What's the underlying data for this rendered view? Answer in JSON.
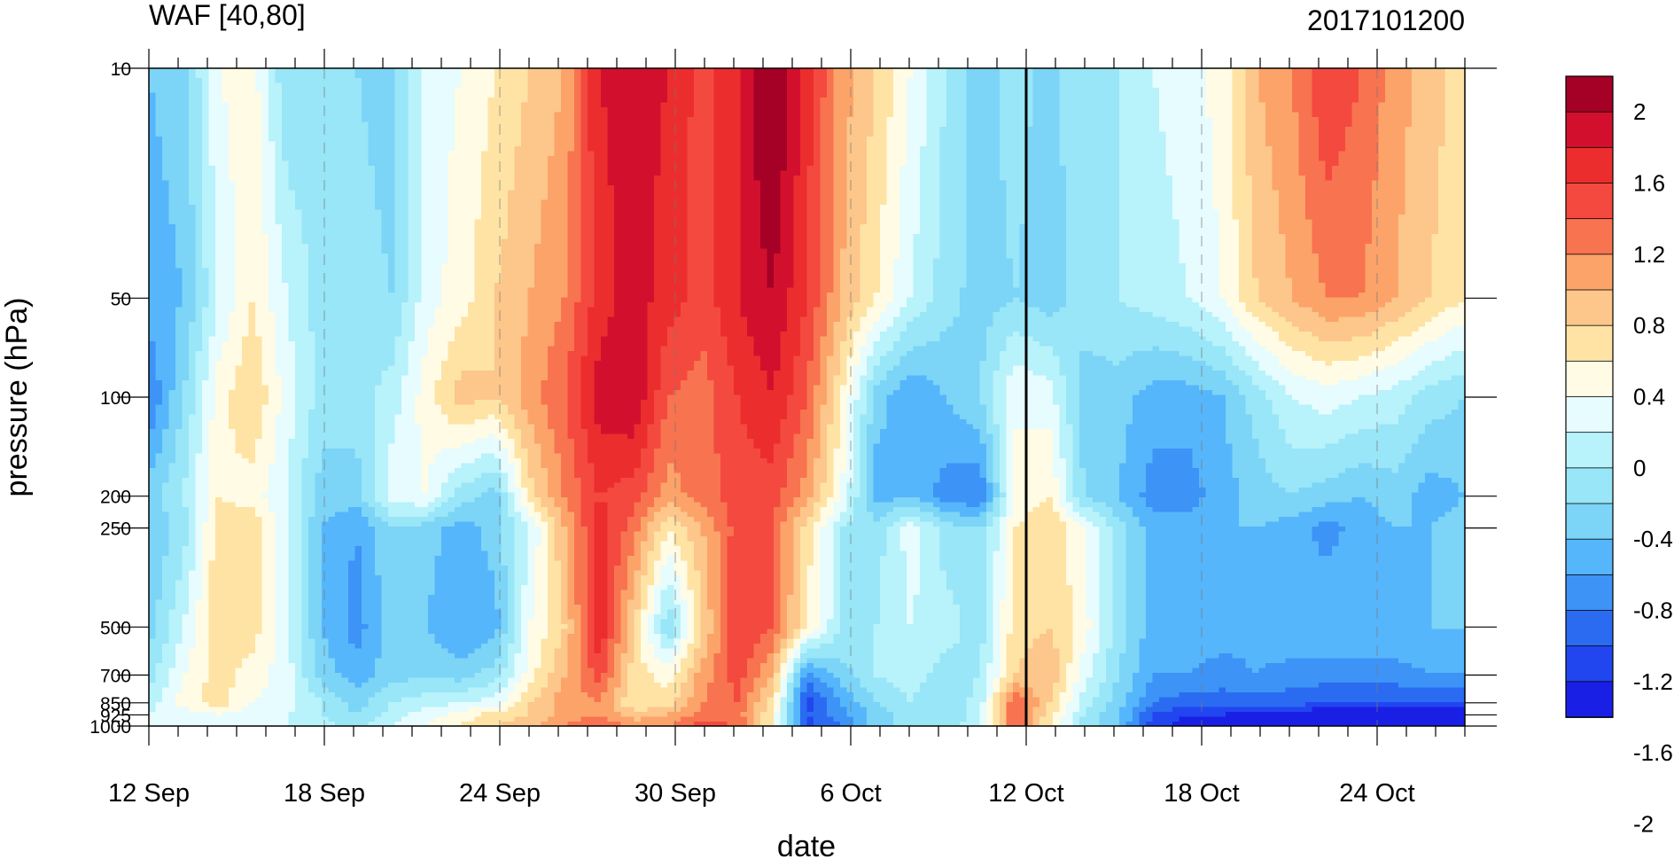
{
  "chart_data": {
    "type": "heatmap",
    "title": "WAF [40,80]",
    "subtitle": "2017101200",
    "xlabel": "date",
    "ylabel": "pressure (hPa)",
    "x_ticks": [
      "12 Sep",
      "18 Sep",
      "24 Sep",
      "30 Sep",
      "6 Oct",
      "12 Oct",
      "18 Oct",
      "24 Oct"
    ],
    "y_ticks": [
      "10",
      "50",
      "100",
      "200",
      "250",
      "500",
      "700",
      "850",
      "925",
      "1000"
    ],
    "y_tick_values": [
      10,
      50,
      100,
      200,
      250,
      500,
      700,
      850,
      925,
      1000
    ],
    "y_scale": "log",
    "y_reversed": true,
    "colorbar": {
      "labels": [
        "2",
        "1.6",
        "1.2",
        "0.8",
        "0.4",
        "0",
        "-0.4",
        "-0.8",
        "-1.2",
        "-1.6",
        "-2"
      ],
      "colors": [
        "#a50026",
        "#d2102e",
        "#ec2d2d",
        "#f4493f",
        "#f8734f",
        "#fca36a",
        "#fdc68a",
        "#fee3a5",
        "#fffbe4",
        "#e6fcff",
        "#b8f2fb",
        "#98e6f7",
        "#7cd4f7",
        "#56b6fb",
        "#3d93f6",
        "#2b6bf2",
        "#2146f0",
        "#1a1fe6"
      ],
      "position": "right"
    },
    "grid_x": [
      "18 Sep",
      "24 Sep",
      "30 Sep",
      "6 Oct",
      "18 Oct",
      "24 Oct"
    ],
    "marker_line": "12 Oct",
    "values": [
      [
        -0.6,
        -0.5,
        0.2,
        0.3,
        -0.4,
        -0.3,
        -0.4,
        -0.5,
        0.1,
        0.2,
        0.4,
        0.6,
        0.8,
        1.6,
        1.7,
        1.6,
        1.3,
        1.6,
        2.1,
        1.5,
        0.9,
        0.6,
        0.2,
        -0.2,
        -0.5,
        -0.3,
        -0.5,
        -0.2,
        -0.2,
        0.0,
        0.1,
        0.3,
        0.8,
        1.0,
        1.4,
        1.2,
        0.9,
        0.7,
        0.5
      ],
      [
        -0.7,
        -0.6,
        0.0,
        0.4,
        0.0,
        -0.3,
        -0.3,
        -0.4,
        0.1,
        0.3,
        0.6,
        0.8,
        1.0,
        1.5,
        1.7,
        1.5,
        1.3,
        1.6,
        1.8,
        1.4,
        0.8,
        0.4,
        0.0,
        -0.3,
        -0.5,
        -0.4,
        -0.5,
        -0.3,
        -0.2,
        -0.1,
        0.0,
        0.2,
        0.6,
        0.8,
        1.0,
        1.0,
        0.8,
        0.6,
        0.4
      ],
      [
        -1.0,
        -0.4,
        0.3,
        0.6,
        0.1,
        -0.3,
        -0.3,
        -0.1,
        0.3,
        0.7,
        0.6,
        0.9,
        1.2,
        1.7,
        1.8,
        1.2,
        1.1,
        1.4,
        1.6,
        1.2,
        0.4,
        -0.5,
        -0.8,
        -0.6,
        -0.4,
        0.2,
        0.1,
        -0.5,
        -0.5,
        -0.7,
        -0.7,
        -0.6,
        -0.3,
        0.0,
        0.1,
        0.0,
        -0.1,
        -0.3,
        -0.4
      ],
      [
        -0.5,
        -0.2,
        0.4,
        0.3,
        0.0,
        -0.5,
        -0.5,
        0.1,
        0.2,
        -0.3,
        -0.5,
        0.5,
        1.0,
        1.4,
        1.3,
        0.9,
        1.1,
        1.3,
        1.3,
        0.9,
        0.2,
        -0.7,
        -0.6,
        -0.9,
        -1.0,
        0.2,
        0.4,
        -0.4,
        -0.6,
        -0.9,
        -0.9,
        -0.7,
        -0.5,
        -0.4,
        -0.5,
        -0.6,
        -0.5,
        -0.7,
        -0.6
      ],
      [
        -0.6,
        -0.3,
        0.5,
        0.6,
        0.0,
        -0.6,
        -0.8,
        -0.4,
        -0.5,
        -0.7,
        -0.5,
        0.0,
        0.8,
        1.5,
        1.1,
        0.4,
        0.8,
        1.3,
        1.2,
        0.5,
        -0.2,
        -0.3,
        0.1,
        -0.3,
        -0.4,
        0.4,
        0.6,
        0.2,
        -0.3,
        -0.7,
        -0.7,
        -0.6,
        -0.6,
        -0.7,
        -0.9,
        -0.7,
        -0.6,
        -0.6,
        -0.5
      ],
      [
        -0.5,
        0.0,
        0.6,
        0.5,
        0.0,
        -0.6,
        -0.9,
        -0.5,
        -0.6,
        -0.8,
        -0.7,
        0.2,
        0.6,
        1.6,
        0.6,
        -0.4,
        0.6,
        1.4,
        1.2,
        0.4,
        -0.2,
        -0.2,
        0.0,
        -0.1,
        -0.3,
        0.5,
        0.6,
        0.3,
        -0.3,
        -0.7,
        -0.6,
        -0.7,
        -0.7,
        -0.6,
        -0.6,
        -0.6,
        -0.6,
        -0.6,
        -0.6
      ],
      [
        -0.3,
        0.2,
        0.5,
        0.3,
        0.1,
        -0.5,
        -0.7,
        -0.5,
        -0.4,
        -0.5,
        -0.3,
        0.3,
        0.8,
        1.3,
        0.5,
        0.3,
        0.9,
        1.3,
        0.8,
        -0.9,
        -0.5,
        -0.2,
        -0.1,
        -0.3,
        -0.2,
        0.6,
        0.8,
        0.1,
        -0.4,
        -0.8,
        -0.8,
        -0.9,
        -0.8,
        -0.9,
        -0.9,
        -0.9,
        -0.9,
        -0.8,
        -0.8
      ],
      [
        -0.1,
        0.3,
        0.5,
        0.2,
        0.1,
        -0.2,
        -0.5,
        -0.2,
        -0.1,
        0.0,
        0.1,
        0.6,
        0.9,
        1.0,
        0.4,
        0.5,
        1.0,
        1.2,
        0.5,
        -1.3,
        -0.8,
        -0.4,
        -0.2,
        -0.4,
        -0.1,
        1.2,
        0.6,
        -0.1,
        -0.5,
        -1.0,
        -1.1,
        -1.1,
        -1.1,
        -1.1,
        -1.2,
        -1.2,
        -1.2,
        -1.2,
        -1.2
      ],
      [
        0.0,
        0.1,
        0.2,
        0.1,
        0.0,
        -0.2,
        -0.4,
        -0.1,
        0.1,
        0.3,
        0.5,
        0.6,
        0.9,
        1.0,
        0.7,
        0.8,
        1.1,
        1.1,
        0.4,
        -1.2,
        -0.9,
        -0.5,
        -0.3,
        -0.4,
        -0.1,
        1.2,
        0.5,
        -0.2,
        -0.6,
        -1.2,
        -1.4,
        -1.4,
        -1.5,
        -1.6,
        -1.6,
        -1.6,
        -1.6,
        -1.7,
        -1.7
      ],
      [
        0.1,
        0.1,
        0.1,
        0.0,
        0.0,
        -0.1,
        -0.3,
        0.0,
        0.2,
        0.4,
        0.6,
        0.7,
        1.0,
        1.2,
        0.9,
        1.0,
        1.3,
        1.2,
        0.4,
        -1.3,
        -1.0,
        -0.5,
        -0.3,
        -0.3,
        0.0,
        1.2,
        0.4,
        -0.3,
        -0.6,
        -1.3,
        -1.5,
        -1.5,
        -1.6,
        -1.7,
        -1.8,
        -1.8,
        -1.8,
        -1.9,
        -1.9
      ]
    ]
  }
}
